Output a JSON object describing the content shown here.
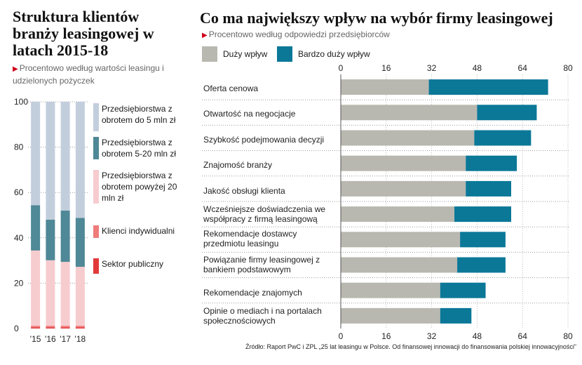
{
  "left": {
    "title": "Struktura klientów branży leasingowej w latach 2015-18",
    "subtitle": "Procentowo według wartości leasingu i udzielonych pożyczek",
    "legend": [
      {
        "label": "Przedsiębiorstwa z obrotem do 5 mln zł",
        "color": "#c3cedd"
      },
      {
        "label": "Przedsiębiorstwa z obrotem 5-20 mln zł",
        "color": "#4f8896"
      },
      {
        "label": "Przedsiębiorstwa z obrotem powyżej 20 mln zł",
        "color": "#f7cccf"
      },
      {
        "label": "Klienci indywidualni",
        "color": "#ef7b7b"
      },
      {
        "label": "Sektor publiczny",
        "color": "#e23a3a"
      }
    ]
  },
  "right": {
    "title": "Co ma największy wpływ na wybór firmy leasingowej",
    "subtitle": "Procentowo według odpowiedzi przedsiębiorców",
    "legend": [
      {
        "label": "Duży wpływ",
        "color": "#b9b8b0"
      },
      {
        "label": "Bardzo duży wpływ",
        "color": "#0b7898"
      }
    ]
  },
  "source": "Źródło: Raport PwC i ZPL „25 lat leasingu w Polsce. Od finansowej innowacji do finansowania polskiej innowacyjności”",
  "chart_data": [
    {
      "type": "bar",
      "stacked": true,
      "orientation": "vertical",
      "title": "Struktura klientów branży leasingowej w latach 2015-18",
      "categories": [
        "'15",
        "'16",
        "'17",
        "'18"
      ],
      "ylim": [
        0,
        100
      ],
      "yticks": [
        0,
        20,
        40,
        60,
        80,
        100
      ],
      "series": [
        {
          "name": "Sektor publiczny",
          "values": [
            0.5,
            0.5,
            0.5,
            0.5
          ],
          "color": "#e23a3a"
        },
        {
          "name": "Klienci indywidualni",
          "values": [
            0.7,
            0.7,
            0.7,
            0.7
          ],
          "color": "#ef7b7b"
        },
        {
          "name": "Przedsiębiorstwa z obrotem powyżej 20 mln zł",
          "values": [
            33.2,
            28.9,
            28.2,
            26.0
          ],
          "color": "#f7cccf"
        },
        {
          "name": "Przedsiębiorstwa z obrotem 5-20 mln zł",
          "values": [
            20.0,
            17.9,
            22.6,
            21.6
          ],
          "color": "#4f8896"
        },
        {
          "name": "Przedsiębiorstwa z obrotem do 5 mln zł",
          "values": [
            45.6,
            52.0,
            48.0,
            51.2
          ],
          "color": "#c3cedd"
        }
      ]
    },
    {
      "type": "bar",
      "stacked": true,
      "orientation": "horizontal",
      "title": "Co ma największy wpływ na wybór firmy leasingowej",
      "categories": [
        "Oferta cenowa",
        "Otwartość na negocjacje",
        "Szybkość podejmowania decyzji",
        "Znajomość branży",
        "Jakość obsługi klienta",
        "Wcześniejsze doświadczenia we współpracy z firmą leasingową",
        "Rekomendacje dostawcy przedmiotu leasingu",
        "Powiązanie firmy leasingowej z bankiem podstawowym",
        "Rekomendacje znajomych",
        "Opinie o mediach i na portalach społecznościowych"
      ],
      "xlim": [
        0,
        80
      ],
      "xticks": [
        0,
        16,
        32,
        48,
        64,
        80
      ],
      "series": [
        {
          "name": "Duży wpływ",
          "values": [
            31,
            48,
            47,
            44,
            44,
            40,
            42,
            41,
            35,
            35
          ],
          "color": "#b9b8b0"
        },
        {
          "name": "Bardzo duży wpływ",
          "values": [
            42,
            21,
            20,
            18,
            16,
            20,
            16,
            17,
            16,
            11
          ],
          "color": "#0b7898"
        }
      ]
    }
  ]
}
